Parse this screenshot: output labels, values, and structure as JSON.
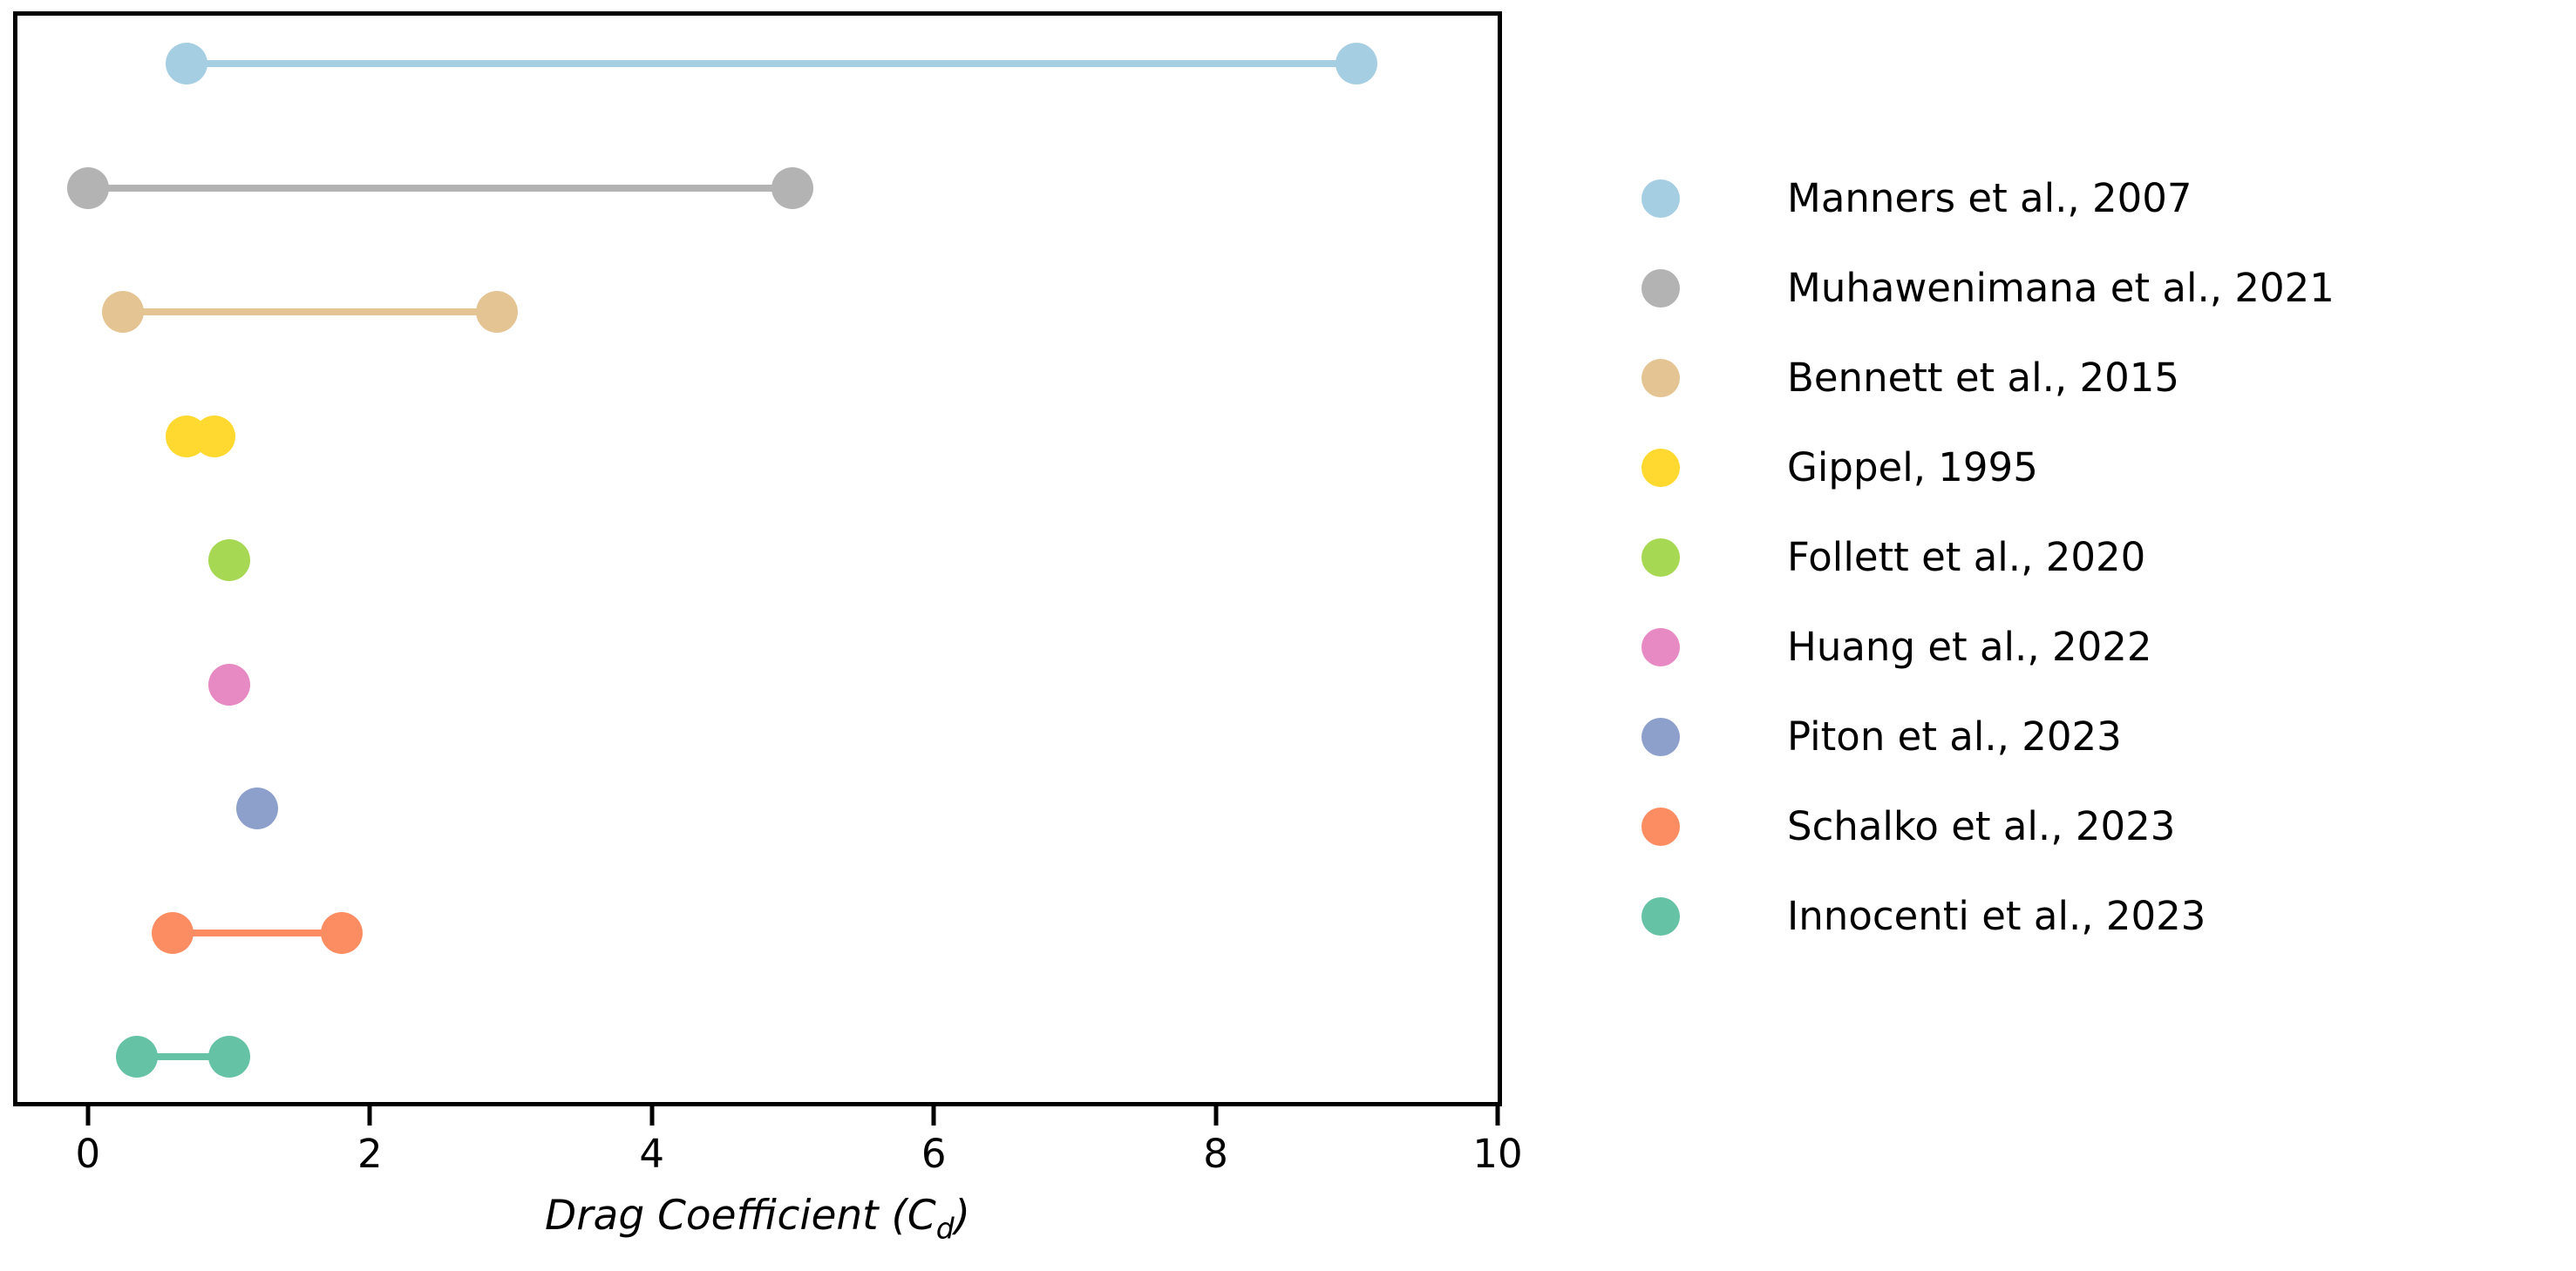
{
  "chart_data": {
    "type": "dumbbell",
    "title": "",
    "xlabel": "Drag Coefficient (Cd)",
    "xlabel_prefix": "Drag Coefficient (C",
    "xlabel_sub": "d",
    "xlabel_suffix": ")",
    "ylabel": "",
    "xlim": [
      -0.5,
      10
    ],
    "xticks": [
      0,
      2,
      4,
      6,
      8,
      10
    ],
    "grid": false,
    "legend_position": "right-of-plot",
    "marker_diameter_px": 48,
    "series": [
      {
        "label": "Manners et al., 2007",
        "color": "#a6cee3",
        "range": [
          0.7,
          9.0
        ]
      },
      {
        "label": "Muhawenimana et al., 2021",
        "color": "#b3b3b3",
        "range": [
          0.0,
          5.0
        ]
      },
      {
        "label": "Bennett et al., 2015",
        "color": "#e5c494",
        "range": [
          0.25,
          2.9
        ]
      },
      {
        "label": "Gippel, 1995",
        "color": "#ffd92f",
        "range": [
          0.7,
          0.9
        ]
      },
      {
        "label": "Follett et al., 2020",
        "color": "#a6d854",
        "range": [
          1.0,
          1.0
        ]
      },
      {
        "label": "Huang et al., 2022",
        "color": "#e78ac3",
        "range": [
          1.0,
          1.0
        ]
      },
      {
        "label": "Piton et al., 2023",
        "color": "#8da0cb",
        "range": [
          1.2,
          1.2
        ]
      },
      {
        "label": "Schalko et al., 2023",
        "color": "#fc8d62",
        "range": [
          0.6,
          1.8
        ]
      },
      {
        "label": "Innocenti et al., 2023",
        "color": "#66c2a5",
        "range": [
          0.35,
          1.0
        ]
      }
    ]
  }
}
